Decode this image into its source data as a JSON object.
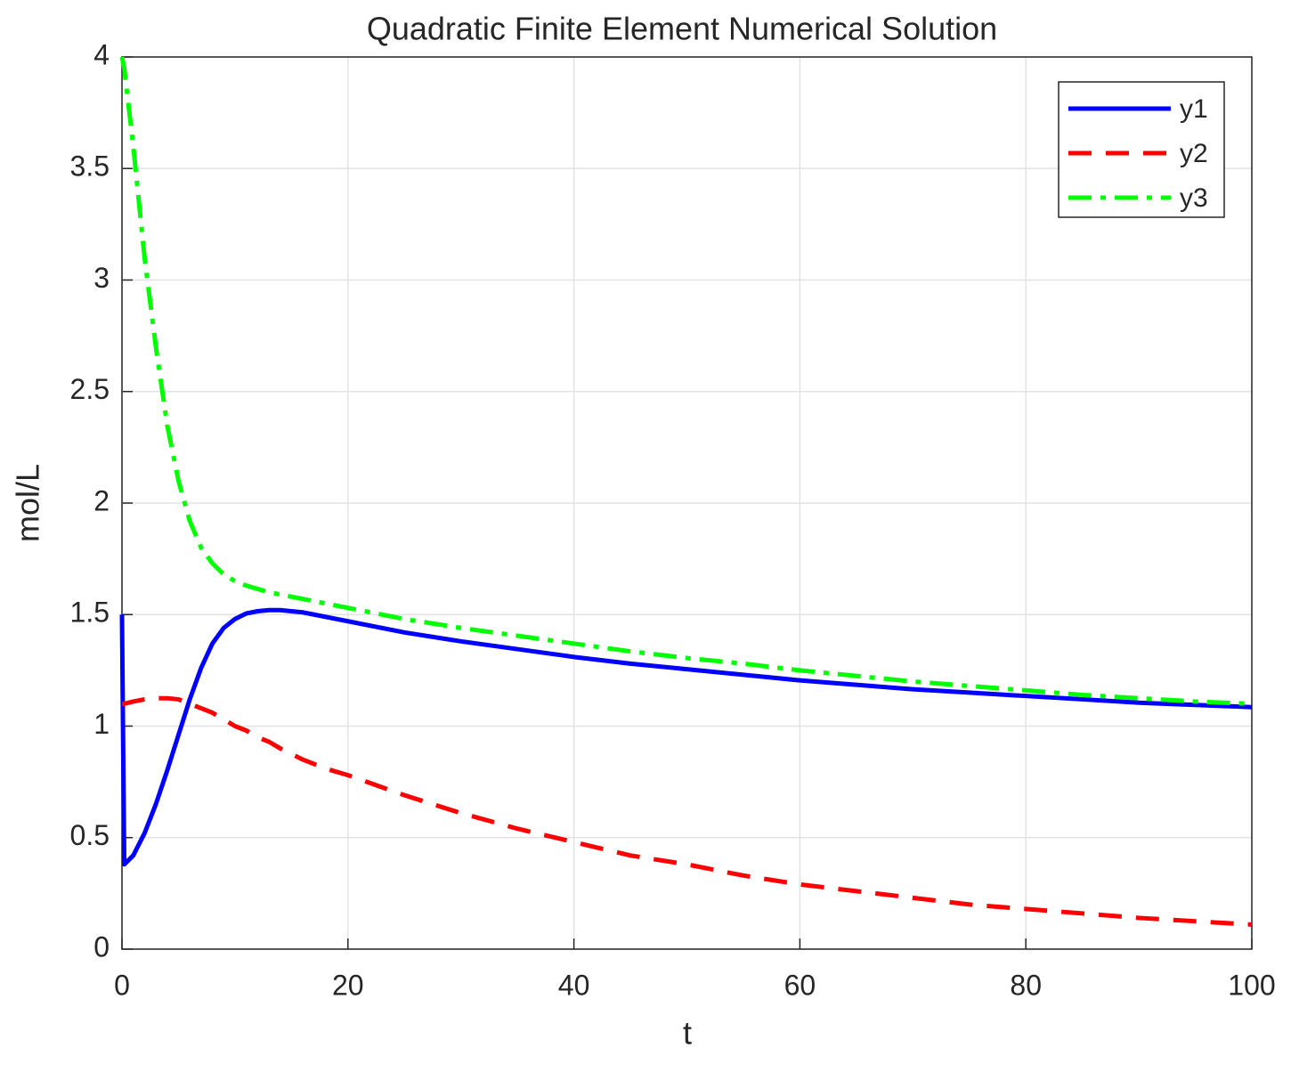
{
  "chart_data": {
    "type": "line",
    "title": "Quadratic Finite Element Numerical Solution",
    "xlabel": "t",
    "ylabel": "mol/L",
    "x": [
      0,
      0.2,
      1,
      2,
      3,
      4,
      5,
      6,
      7,
      8,
      9,
      10,
      11,
      12,
      13,
      14,
      16,
      18,
      20,
      25,
      30,
      35,
      40,
      45,
      50,
      55,
      60,
      65,
      70,
      75,
      80,
      85,
      90,
      95,
      100
    ],
    "series": [
      {
        "name": "y1",
        "color": "#0000ff",
        "line_style": "solid",
        "values": [
          1.5,
          0.38,
          0.42,
          0.52,
          0.65,
          0.8,
          0.96,
          1.12,
          1.26,
          1.37,
          1.44,
          1.48,
          1.505,
          1.515,
          1.52,
          1.52,
          1.51,
          1.49,
          1.47,
          1.42,
          1.38,
          1.345,
          1.31,
          1.28,
          1.255,
          1.23,
          1.205,
          1.185,
          1.165,
          1.15,
          1.135,
          1.12,
          1.105,
          1.095,
          1.085
        ]
      },
      {
        "name": "y2",
        "color": "#ff0000",
        "line_style": "dashed",
        "values": [
          1.1,
          1.1,
          1.11,
          1.12,
          1.125,
          1.125,
          1.12,
          1.1,
          1.08,
          1.06,
          1.03,
          1.0,
          0.98,
          0.95,
          0.93,
          0.9,
          0.85,
          0.81,
          0.78,
          0.69,
          0.61,
          0.54,
          0.48,
          0.42,
          0.38,
          0.33,
          0.29,
          0.26,
          0.23,
          0.2,
          0.18,
          0.16,
          0.14,
          0.125,
          0.11
        ]
      },
      {
        "name": "y3",
        "color": "#00ff00",
        "line_style": "dashdot",
        "values": [
          4.0,
          3.95,
          3.6,
          3.1,
          2.7,
          2.35,
          2.1,
          1.92,
          1.8,
          1.73,
          1.68,
          1.65,
          1.63,
          1.615,
          1.6,
          1.59,
          1.57,
          1.55,
          1.53,
          1.48,
          1.44,
          1.405,
          1.37,
          1.335,
          1.305,
          1.28,
          1.25,
          1.225,
          1.2,
          1.18,
          1.16,
          1.14,
          1.125,
          1.11,
          1.1
        ]
      }
    ],
    "xlim": [
      0,
      100
    ],
    "xticks": [
      0,
      20,
      40,
      60,
      80,
      100
    ],
    "ylim": [
      0,
      4
    ],
    "yticks": [
      0,
      0.5,
      1,
      1.5,
      2,
      2.5,
      3,
      3.5,
      4
    ],
    "grid": true,
    "legend": "northeast"
  }
}
